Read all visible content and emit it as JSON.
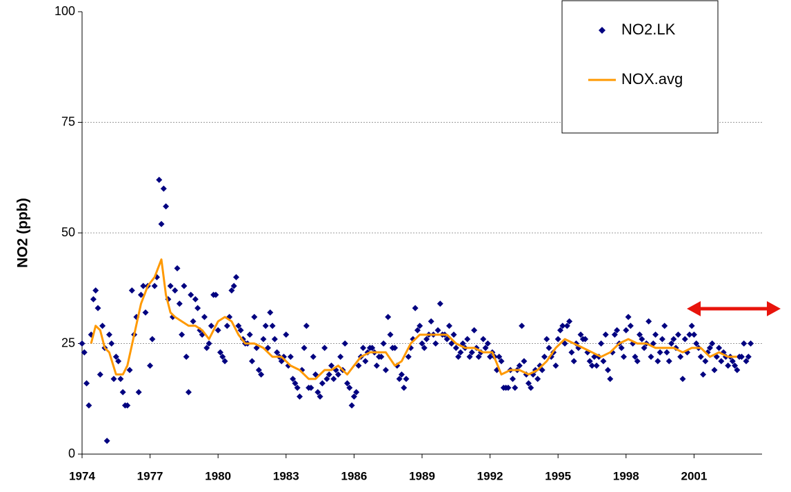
{
  "chart_data": {
    "type": "scatter",
    "y_label": "NO2 (ppb)",
    "xlim": [
      1974,
      2004
    ],
    "xticks": [
      1974,
      1977,
      1980,
      1983,
      1986,
      1989,
      1992,
      1995,
      1998,
      2001
    ],
    "ylim": [
      0,
      100
    ],
    "yticks": [
      0,
      25,
      50,
      75,
      100
    ],
    "grid": true,
    "legend": "upper right",
    "series": [
      {
        "name": "NO2.LK",
        "type": "scatter",
        "color": "#000080",
        "x": [
          1974,
          1974.1,
          1974.2,
          1974.3,
          1974.4,
          1974.5,
          1974.6,
          1974.7,
          1974.8,
          1974.9,
          1975,
          1975.1,
          1975.2,
          1975.3,
          1975.4,
          1975.5,
          1975.6,
          1975.7,
          1975.8,
          1975.9,
          1976,
          1976.1,
          1976.2,
          1976.3,
          1976.4,
          1976.5,
          1976.6,
          1976.7,
          1976.8,
          1976.9,
          1977,
          1977.1,
          1977.2,
          1977.3,
          1977.4,
          1977.5,
          1977.6,
          1977.7,
          1977.8,
          1977.9,
          1978,
          1978.1,
          1978.2,
          1978.3,
          1978.4,
          1978.5,
          1978.6,
          1978.7,
          1978.8,
          1978.9,
          1979,
          1979.1,
          1979.2,
          1979.3,
          1979.4,
          1979.5,
          1979.6,
          1979.7,
          1979.8,
          1979.9,
          1980,
          1980.1,
          1980.2,
          1980.3,
          1980.4,
          1980.5,
          1980.6,
          1980.7,
          1980.8,
          1980.9,
          1981,
          1981.1,
          1981.2,
          1981.3,
          1981.4,
          1981.5,
          1981.6,
          1981.7,
          1981.8,
          1981.9,
          1982,
          1982.1,
          1982.2,
          1982.3,
          1982.4,
          1982.5,
          1982.6,
          1982.7,
          1982.8,
          1982.9,
          1983,
          1983.1,
          1983.2,
          1983.3,
          1983.4,
          1983.5,
          1983.6,
          1983.7,
          1983.8,
          1983.9,
          1984,
          1984.1,
          1984.2,
          1984.3,
          1984.4,
          1984.5,
          1984.6,
          1984.7,
          1984.8,
          1984.9,
          1985,
          1985.1,
          1985.2,
          1985.3,
          1985.4,
          1985.5,
          1985.6,
          1985.7,
          1985.8,
          1985.9,
          1986,
          1986.1,
          1986.2,
          1986.3,
          1986.4,
          1986.5,
          1986.6,
          1986.7,
          1986.8,
          1986.9,
          1987,
          1987.1,
          1987.2,
          1987.3,
          1987.4,
          1987.5,
          1987.6,
          1987.7,
          1987.8,
          1987.9,
          1988,
          1988.1,
          1988.2,
          1988.3,
          1988.4,
          1988.5,
          1988.6,
          1988.7,
          1988.8,
          1988.9,
          1989,
          1989.1,
          1989.2,
          1989.3,
          1989.4,
          1989.5,
          1989.6,
          1989.7,
          1989.8,
          1989.9,
          1990,
          1990.1,
          1990.2,
          1990.3,
          1990.4,
          1990.5,
          1990.6,
          1990.7,
          1990.8,
          1990.9,
          1991,
          1991.1,
          1991.2,
          1991.3,
          1991.4,
          1991.5,
          1991.6,
          1991.7,
          1991.8,
          1991.9,
          1992,
          1992.1,
          1992.2,
          1992.3,
          1992.4,
          1992.5,
          1992.6,
          1992.7,
          1992.8,
          1992.9,
          1993,
          1993.1,
          1993.2,
          1993.3,
          1993.4,
          1993.5,
          1993.6,
          1993.7,
          1993.8,
          1993.9,
          1994,
          1994.1,
          1994.2,
          1994.3,
          1994.4,
          1994.5,
          1994.6,
          1994.7,
          1994.8,
          1994.9,
          1995,
          1995.1,
          1995.2,
          1995.3,
          1995.4,
          1995.5,
          1995.6,
          1995.7,
          1995.8,
          1995.9,
          1996,
          1996.1,
          1996.2,
          1996.3,
          1996.4,
          1996.5,
          1996.6,
          1996.7,
          1996.8,
          1996.9,
          1997,
          1997.1,
          1997.2,
          1997.3,
          1997.4,
          1997.5,
          1997.6,
          1997.7,
          1997.8,
          1997.9,
          1998,
          1998.1,
          1998.2,
          1998.3,
          1998.4,
          1998.5,
          1998.6,
          1998.7,
          1998.8,
          1998.9,
          1999,
          1999.1,
          1999.2,
          1999.3,
          1999.4,
          1999.5,
          1999.6,
          1999.7,
          1999.8,
          1999.9,
          2000,
          2000.1,
          2000.2,
          2000.3,
          2000.4,
          2000.5,
          2000.6,
          2000.7,
          2000.8,
          2000.9,
          2001,
          2001.1,
          2001.2,
          2001.3,
          2001.4,
          2001.5,
          2001.6,
          2001.7,
          2001.8,
          2001.9,
          2002,
          2002.1,
          2002.2,
          2002.3,
          2002.4,
          2002.5,
          2002.6,
          2002.7,
          2002.8,
          2002.9,
          2003,
          2003.1,
          2003.2,
          2003.3,
          2003.4,
          2003.5
        ],
        "values": [
          25,
          23,
          16,
          11,
          27,
          35,
          37,
          33,
          18,
          29,
          24,
          3,
          27,
          25,
          17,
          22,
          21,
          17,
          14,
          11,
          11,
          19,
          37,
          27,
          31,
          14,
          36,
          38,
          32,
          38,
          20,
          26,
          38,
          40,
          62,
          52,
          60,
          56,
          35,
          38,
          31,
          37,
          42,
          34,
          27,
          38,
          22,
          14,
          36,
          30,
          35,
          33,
          28,
          27,
          31,
          24,
          25,
          29,
          36,
          36,
          28,
          23,
          22,
          21,
          29,
          31,
          37,
          38,
          40,
          29,
          28,
          26,
          25,
          25,
          27,
          21,
          31,
          24,
          19,
          18,
          26,
          29,
          24,
          32,
          29,
          26,
          23,
          22,
          21,
          22,
          27,
          20,
          22,
          17,
          16,
          15,
          13,
          19,
          24,
          29,
          15,
          15,
          22,
          18,
          14,
          13,
          16,
          24,
          17,
          18,
          20,
          17,
          19,
          18,
          22,
          19,
          25,
          16,
          15,
          11,
          13,
          14,
          20,
          22,
          24,
          21,
          23,
          24,
          24,
          23,
          20,
          22,
          22,
          25,
          19,
          31,
          27,
          24,
          24,
          20,
          17,
          18,
          15,
          17,
          22,
          24,
          26,
          33,
          28,
          29,
          25,
          24,
          26,
          27,
          30,
          27,
          25,
          28,
          34,
          27,
          27,
          26,
          29,
          25,
          27,
          24,
          22,
          23,
          25,
          24,
          26,
          22,
          23,
          28,
          24,
          22,
          23,
          26,
          24,
          25,
          22,
          23,
          22,
          19,
          22,
          21,
          15,
          15,
          15,
          19,
          17,
          15,
          19,
          20,
          29,
          21,
          18,
          16,
          15,
          18,
          19,
          17,
          20,
          19,
          22,
          26,
          24,
          22,
          23,
          20,
          26,
          28,
          29,
          25,
          29,
          30,
          23,
          21,
          25,
          24,
          27,
          26,
          26,
          23,
          21,
          20,
          22,
          20,
          22,
          25,
          21,
          27,
          19,
          17,
          23,
          27,
          28,
          25,
          24,
          22,
          28,
          31,
          29,
          25,
          22,
          21,
          27,
          26,
          24,
          25,
          30,
          22,
          25,
          27,
          21,
          23,
          26,
          29,
          23,
          21,
          25,
          26,
          24,
          27,
          22,
          17,
          26,
          23,
          27,
          29,
          27,
          25,
          24,
          22,
          18,
          21,
          23,
          24,
          25,
          19,
          22,
          24,
          21,
          23,
          22,
          20,
          22,
          21,
          20,
          19,
          22,
          22,
          25,
          21,
          22,
          25
        ]
      },
      {
        "name": "NOX.avg",
        "type": "line",
        "color": "#ff9900",
        "x": [
          1974.4,
          1974.6,
          1974.8,
          1975,
          1975.2,
          1975.5,
          1975.8,
          1976,
          1976.3,
          1976.6,
          1976.9,
          1977.2,
          1977.5,
          1977.7,
          1977.9,
          1978.1,
          1978.4,
          1978.7,
          1979,
          1979.3,
          1979.6,
          1980,
          1980.3,
          1980.6,
          1980.9,
          1981.2,
          1981.6,
          1982,
          1982.4,
          1982.8,
          1983.2,
          1983.6,
          1984,
          1984.3,
          1984.7,
          1985,
          1985.3,
          1985.7,
          1986,
          1986.3,
          1986.7,
          1987,
          1987.4,
          1987.8,
          1988.1,
          1988.5,
          1988.9,
          1989.3,
          1989.7,
          1990.1,
          1990.5,
          1990.9,
          1991.3,
          1991.7,
          1992.1,
          1992.5,
          1992.9,
          1993.3,
          1993.7,
          1994.1,
          1994.5,
          1994.9,
          1995.3,
          1995.7,
          1996.1,
          1996.5,
          1996.9,
          1997.3,
          1997.7,
          1998.1,
          1998.5,
          1998.9,
          1999.3,
          1999.7,
          2000.1,
          2000.5,
          2000.9,
          2001.3,
          2001.7,
          2002.1,
          2002.5,
          2002.9
        ],
        "values": [
          25,
          29,
          28,
          24,
          23,
          18,
          18,
          20,
          27,
          34,
          38,
          40,
          44,
          36,
          32,
          31,
          30,
          29,
          29,
          28,
          26,
          30,
          31,
          30,
          27,
          25,
          25,
          24,
          22,
          22,
          20,
          19,
          17,
          17,
          19,
          19,
          20,
          18,
          20,
          22,
          23,
          23,
          23,
          20,
          21,
          25,
          27,
          27,
          27,
          27,
          25,
          24,
          24,
          23,
          23,
          18,
          19,
          19,
          18,
          19,
          21,
          24,
          26,
          25,
          24,
          23,
          22,
          23,
          25,
          26,
          25,
          25,
          24,
          24,
          24,
          23,
          24,
          24,
          22,
          23,
          22,
          22
        ]
      }
    ]
  }
}
